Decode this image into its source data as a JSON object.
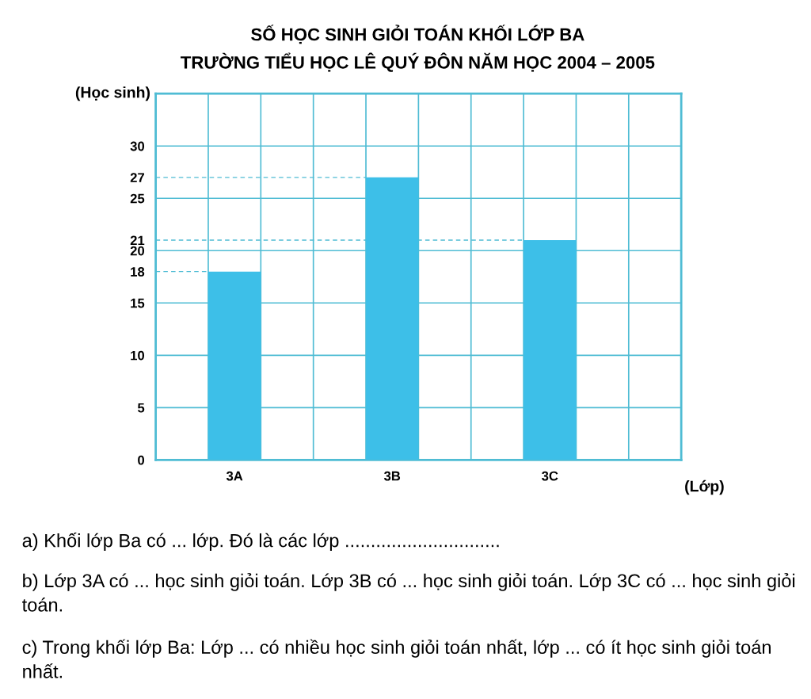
{
  "chart_data": {
    "type": "bar",
    "title": "SỐ HỌC SINH GIỎI TOÁN KHỐI LỚP BA",
    "subtitle": "TRƯỜNG TIỂU HỌC LÊ QUÝ ĐÔN NĂM HỌC 2004 – 2005",
    "xlabel": "(Lớp)",
    "ylabel": "(Học sinh)",
    "categories": [
      "3A",
      "3B",
      "3C"
    ],
    "values": [
      18,
      27,
      21
    ],
    "color": "#3dbfe8",
    "ylim": [
      0,
      35
    ],
    "yticks": [
      0,
      5,
      10,
      15,
      18,
      20,
      21,
      25,
      27,
      30
    ],
    "ref_lines": [
      {
        "axis": "y",
        "value": 18,
        "line_style": "dashed",
        "color": "#4fbcd4"
      },
      {
        "axis": "y",
        "value": 21,
        "line_style": "dashed",
        "color": "#4fbcd4"
      },
      {
        "axis": "y",
        "value": 27,
        "line_style": "dashed",
        "color": "#4fbcd4"
      }
    ],
    "grid": true,
    "annotations": [
      "a) Khối lớp Ba có ... lớp. Đó là các lớp ..............................",
      "b) Lớp 3A có ... học sinh giỏi toán. Lớp 3B có ... học sinh giỏi toán. Lớp 3C có ... học sinh giỏi toán.",
      "c) Trong khối lớp Ba: Lớp ... có nhiều học sinh giỏi toán nhất, lớp ... có ít học sinh giỏi toán nhất."
    ]
  }
}
